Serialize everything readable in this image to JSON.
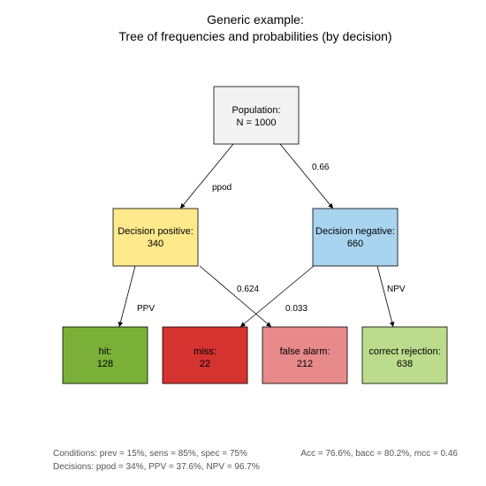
{
  "title": {
    "line1": "Generic example:",
    "line2": "Tree of frequencies and probabilities (by decision)"
  },
  "nodes": {
    "population": {
      "label": "Population:",
      "value": "N = 1000",
      "color": "#f2f2f2"
    },
    "dec_pos": {
      "label": "Decision positive:",
      "value": "340",
      "color": "#ffe98d"
    },
    "dec_neg": {
      "label": "Decision negative:",
      "value": "660",
      "color": "#a9d4ef"
    },
    "hit": {
      "label": "hit:",
      "value": "128",
      "color": "#7ab038"
    },
    "miss": {
      "label": "miss:",
      "value": "22",
      "color": "#d43330"
    },
    "false_alarm": {
      "label": "false alarm:",
      "value": "212",
      "color": "#e8898a"
    },
    "correct_rejection": {
      "label": "correct rejection:",
      "value": "638",
      "color": "#bbdc8c"
    }
  },
  "edges": {
    "pop_to_pos": "ppod",
    "pop_to_neg": "0.66",
    "pos_to_hit": "PPV",
    "pos_to_fa": "0.624",
    "neg_to_miss": "0.033",
    "neg_to_cr": "NPV"
  },
  "footer": {
    "conditions": "Conditions: prev = 15%, sens = 85%, spec = 75%",
    "accuracy": "Acc = 76.6%, bacc = 80.2%, mcc = 0.46",
    "decisions": "Decisions:  ppod = 34%, PPV = 37.6%, NPV = 96.7%"
  }
}
